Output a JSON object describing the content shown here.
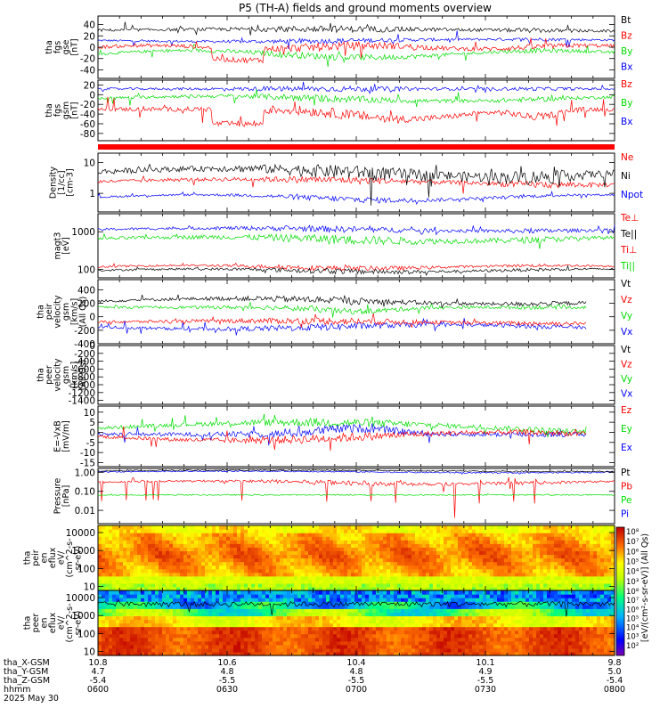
{
  "title": "P5 (TH-A) fields and ground moments overview",
  "colors": {
    "black": "#000000",
    "red": "#ff0000",
    "green": "#00dd00",
    "blue": "#0000ff"
  },
  "chart_data": [
    {
      "type": "line",
      "id": "fgs_gse",
      "ylabel": [
        "tha",
        "fgs",
        "gse",
        "[nT]"
      ],
      "ylim": [
        -55,
        55
      ],
      "ticks": [
        "40",
        "20",
        "0",
        "-20",
        "-40"
      ],
      "tick_values": [
        40,
        20,
        0,
        -20,
        -40
      ],
      "legend": [
        {
          "label": "Bt",
          "color": "black"
        },
        {
          "label": "Bz",
          "color": "red"
        },
        {
          "label": "By",
          "color": "green"
        },
        {
          "label": "Bx",
          "color": "blue"
        }
      ]
    },
    {
      "type": "line",
      "id": "fgs_gsm",
      "ylabel": [
        "tha",
        "fgs",
        "gsm",
        "[nT]"
      ],
      "ylim": [
        -95,
        30
      ],
      "ticks": [
        "20",
        "0",
        "-20",
        "-40",
        "-60",
        "-80"
      ],
      "tick_values": [
        20,
        0,
        -20,
        -40,
        -60,
        -80
      ],
      "legend": [
        {
          "label": "Bz",
          "color": "red"
        },
        {
          "label": "By",
          "color": "green"
        },
        {
          "label": "Bx",
          "color": "blue"
        }
      ]
    },
    {
      "type": "bar",
      "id": "status_bar",
      "color": "red"
    },
    {
      "type": "line",
      "id": "density",
      "ylabel": [
        "Density",
        "[1/cc]",
        "[cm-3]"
      ],
      "scale": "log",
      "ylim": [
        0.25,
        20
      ],
      "ticks": [
        "10",
        "1"
      ],
      "tick_values": [
        10,
        1
      ],
      "legend": [
        {
          "label": "Ne",
          "color": "red"
        },
        {
          "label": "Ni",
          "color": "black"
        },
        {
          "label": "Npot",
          "color": "blue"
        }
      ]
    },
    {
      "type": "line",
      "id": "temperature",
      "ylabel": [
        "magt3",
        "[eV]"
      ],
      "scale": "log",
      "ylim": [
        60,
        3000
      ],
      "ticks": [
        "1000",
        "100"
      ],
      "tick_values": [
        1000,
        100
      ],
      "legend": [
        {
          "label": "Te⊥",
          "color": "red"
        },
        {
          "label": "Te||",
          "color": "black"
        },
        {
          "label": "Ti⊥",
          "color": "red"
        },
        {
          "label": "Ti||",
          "color": "green"
        }
      ]
    },
    {
      "type": "line",
      "id": "peir_velocity",
      "ylabel": [
        "tha",
        "peir",
        "velocity",
        "gsm",
        "[km/s]",
        "(All Qs)"
      ],
      "ylim": [
        -400,
        550
      ],
      "ticks": [
        "400",
        "200",
        "0",
        "-200",
        "-400"
      ],
      "tick_values": [
        400,
        200,
        0,
        -200,
        -400
      ],
      "legend": [
        {
          "label": "Vt",
          "color": "black"
        },
        {
          "label": "Vz",
          "color": "red"
        },
        {
          "label": "Vy",
          "color": "green"
        },
        {
          "label": "Vx",
          "color": "blue"
        }
      ]
    },
    {
      "type": "line",
      "id": "peer_velocity",
      "ylabel": [
        "tha",
        "peer",
        "velocity",
        "gsm",
        "[km/s]",
        "(All Qs)"
      ],
      "ylim": [
        -1500,
        0
      ],
      "ticks": [
        "0",
        "-200",
        "-400",
        "-600",
        "-800",
        "-1000",
        "-1200",
        "-1400"
      ],
      "tick_values": [
        0,
        -200,
        -400,
        -600,
        -800,
        -1000,
        -1200,
        -1400
      ],
      "legend": [
        {
          "label": "Vt",
          "color": "black"
        },
        {
          "label": "Vz",
          "color": "red"
        },
        {
          "label": "Vy",
          "color": "green"
        },
        {
          "label": "Vx",
          "color": "blue"
        }
      ]
    },
    {
      "type": "line",
      "id": "efield",
      "ylabel": [
        "E=-VxB",
        "[mV/m]"
      ],
      "ylim": [
        -17,
        13
      ],
      "ticks": [
        "10",
        "5",
        "0",
        "-5",
        "-10",
        "-15"
      ],
      "tick_values": [
        10,
        5,
        0,
        -5,
        -10,
        -15
      ],
      "legend": [
        {
          "label": "Ez",
          "color": "red"
        },
        {
          "label": "Ey",
          "color": "green"
        },
        {
          "label": "Ex",
          "color": "blue"
        }
      ]
    },
    {
      "type": "line",
      "id": "pressure",
      "ylabel": [
        "Pressure",
        "[nPa]"
      ],
      "scale": "log",
      "ylim": [
        0.002,
        1.6
      ],
      "ticks": [
        "1.00",
        "0.10",
        "0.01"
      ],
      "tick_values": [
        1,
        0.1,
        0.01
      ],
      "legend": [
        {
          "label": "Pt",
          "color": "black"
        },
        {
          "label": "Pb",
          "color": "red"
        },
        {
          "label": "Pe",
          "color": "green"
        },
        {
          "label": "Pi",
          "color": "blue"
        }
      ]
    },
    {
      "type": "heatmap",
      "id": "peir_eflux",
      "ylabel": [
        "tha",
        "peir",
        "en",
        "eflux",
        "eV/",
        "(cm^2-s-",
        "sr-eV)"
      ],
      "scale": "log",
      "ylim": [
        6,
        25000
      ],
      "ticks": [
        "10000",
        "1000",
        "100",
        "10"
      ],
      "tick_values": [
        10000,
        1000,
        100,
        10
      ],
      "colorbar_ticks": [
        "10⁸",
        "10⁷",
        "10⁶",
        "10⁵",
        "10⁴",
        "10³"
      ]
    },
    {
      "type": "heatmap",
      "id": "peer_eflux",
      "ylabel": [
        "tha",
        "peer",
        "en",
        "eflux",
        "eV/",
        "(cm^2-s-",
        "sr-eV)"
      ],
      "scale": "log",
      "ylim": [
        6,
        25000
      ],
      "ticks": [
        "10000",
        "1000",
        "100",
        "10"
      ],
      "tick_values": [
        10000,
        1000,
        100,
        10
      ],
      "colorbar_ticks": [
        "10⁸",
        "10⁷",
        "10⁶",
        "10⁵",
        "10⁴",
        "10³",
        "10²"
      ],
      "colorbar_label": "[eV/(cm²-s-sr-eV)] (All Qs)"
    }
  ],
  "xaxis": {
    "rows": [
      {
        "label": "tha_X-GSM",
        "values": [
          "10.8",
          "10.6",
          "10.4",
          "10.1",
          "9.8"
        ]
      },
      {
        "label": "tha_Y-GSM",
        "values": [
          "4.7",
          "4.8",
          "4.8",
          "4.9",
          "5.0"
        ]
      },
      {
        "label": "tha_Z-GSM",
        "values": [
          "-5.4",
          "-5.5",
          "-5.5",
          "-5.5",
          "-5.4"
        ]
      },
      {
        "label": "hhmm",
        "values": [
          "0600",
          "0630",
          "0700",
          "0730",
          "0800"
        ]
      }
    ],
    "date": "2025 May 30"
  }
}
